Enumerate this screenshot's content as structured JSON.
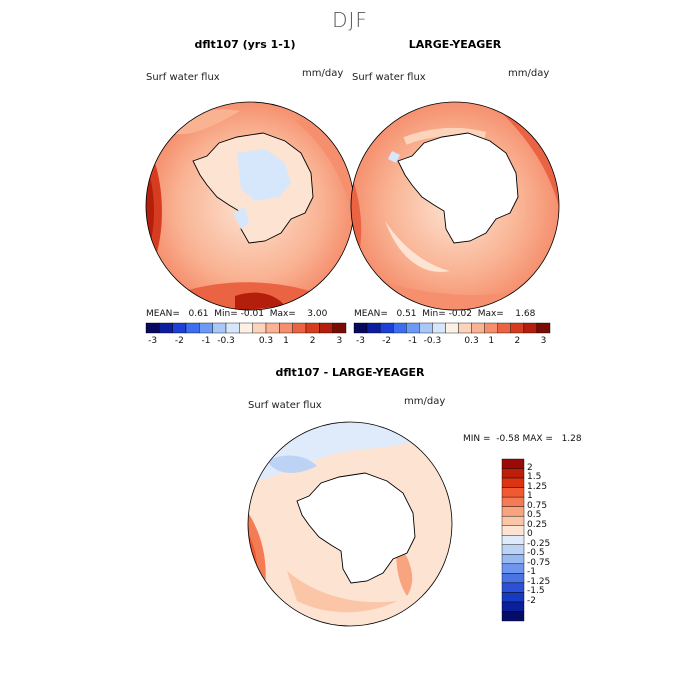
{
  "figure": {
    "season_title": "DJF",
    "panels": [
      {
        "title": "dflt107 (yrs 1-1)",
        "variable": "Surf water flux",
        "units": "mm/day",
        "stats": {
          "mean_label": "MEAN=",
          "mean": "0.61",
          "min_label": "Min=",
          "min": "-0.01",
          "max_label": "Max=",
          "max": "3.00"
        }
      },
      {
        "title": "LARGE-YEAGER",
        "variable": "Surf water flux",
        "units": "mm/day",
        "stats": {
          "mean_label": "MEAN=",
          "mean": "0.51",
          "min_label": "Min=",
          "min": "-0.02",
          "max_label": "Max=",
          "max": "1.68"
        }
      },
      {
        "title": "dflt107 - LARGE-YEAGER",
        "variable": "Surf water flux",
        "units": "mm/day",
        "stats": {
          "min_label": "MIN =",
          "min": "-0.58",
          "max_label": "MAX =",
          "max": "1.28"
        }
      }
    ],
    "top_colorbar": {
      "colors": [
        "#08085e",
        "#0c1e9e",
        "#1c3fd6",
        "#3d6ef0",
        "#6d9af5",
        "#a9c8f8",
        "#d6e6fb",
        "#fdf0e4",
        "#fcd4bb",
        "#f9b292",
        "#f58f6e",
        "#ea6343",
        "#d63c1f",
        "#b41f0c",
        "#7a0a04"
      ],
      "tick_labels": [
        "-3",
        "-2",
        "-1",
        "-0.3",
        "0.3",
        "1",
        "2",
        "3"
      ]
    },
    "diff_colorbar": {
      "colors": [
        "#9b0a05",
        "#bd1e0a",
        "#dc3413",
        "#ef5a32",
        "#f47c55",
        "#f8a47f",
        "#fbc6a8",
        "#fde3d2",
        "#dfeafa",
        "#bcd3f6",
        "#98b8f2",
        "#6e96ee",
        "#4a73e6",
        "#2c50d8",
        "#173bbe",
        "#0a1f9a",
        "#050c68"
      ],
      "labels": [
        "2",
        "1.5",
        "1.25",
        "1",
        "0.75",
        "0.5",
        "0.25",
        "0",
        "-0.25",
        "-0.5",
        "-0.75",
        "-1",
        "-1.25",
        "-1.5",
        "-2"
      ]
    },
    "colors": {
      "ocean_low": "#fcd4bb",
      "ocean_mid": "#f9b292",
      "ocean_high": "#ea6343",
      "land": "#ffffff",
      "coast": "#000000"
    }
  }
}
